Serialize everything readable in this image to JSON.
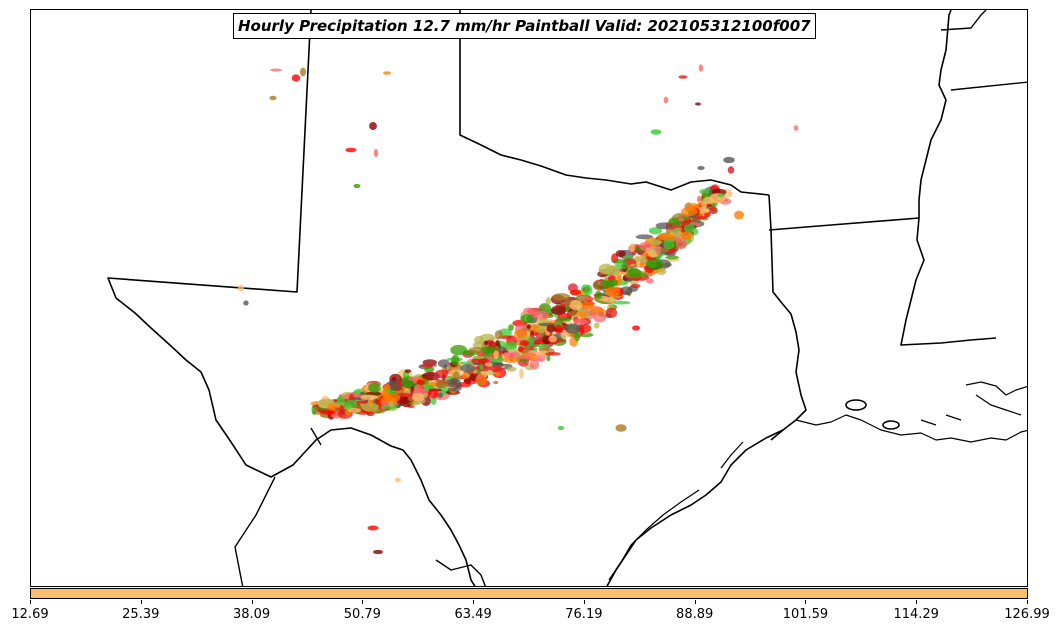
{
  "title": "Hourly Precipitation 12.7 mm/hr Paintball Valid: 202105312100f007",
  "colorbar": {
    "color": "#fdbf6f",
    "ticks": [
      "12.69",
      "25.39",
      "38.09",
      "50.79",
      "63.49",
      "76.19",
      "88.89",
      "101.59",
      "114.29",
      "126.99"
    ]
  },
  "map": {
    "boundary_color": "#000000",
    "land_color": "#ffffff",
    "paintball_colors": [
      "#ff0000",
      "#e31a1c",
      "#ff7f00",
      "#fdbf6f",
      "#33cc33",
      "#339900",
      "#8b0000",
      "#b5b54a",
      "#555555",
      "#fb6a6a",
      "#aa7722"
    ]
  }
}
